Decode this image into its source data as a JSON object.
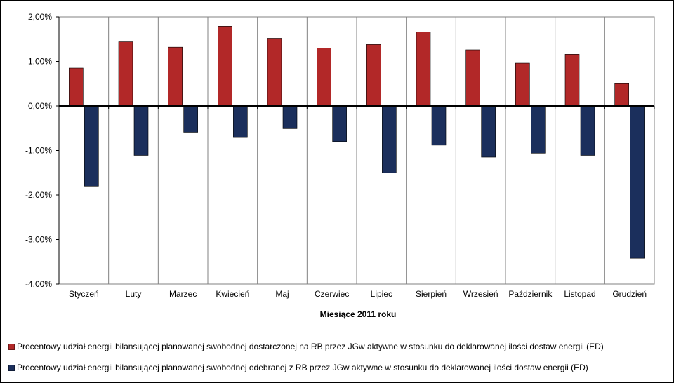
{
  "chart_data": {
    "type": "bar",
    "xlabel": "Miesiące 2011  roku",
    "ylabel": "",
    "ylim": [
      -4,
      2
    ],
    "y_ticks": [
      "2,00%",
      "1,00%",
      "0,00%",
      "-1,00%",
      "-2,00%",
      "-3,00%",
      "-4,00%"
    ],
    "categories": [
      "Styczeń",
      "Luty",
      "Marzec",
      "Kwiecień",
      "Maj",
      "Czerwiec",
      "Lipiec",
      "Sierpień",
      "Wrzesień",
      "Październik",
      "Listopad",
      "Grudzień"
    ],
    "series": [
      {
        "name": "Procentowy udział energii bilansującej planowanej swobodnej dostarczonej na RB przez JGw aktywne w stosunku do deklarowanej ilości dostaw energii (ED)",
        "color": "#b22828",
        "values": [
          0.85,
          1.44,
          1.32,
          1.79,
          1.52,
          1.3,
          1.38,
          1.66,
          1.26,
          0.96,
          1.16,
          0.5
        ]
      },
      {
        "name": "Procentowy udział energii bilansującej planowanej swobodnej odebranej z RB przez JGw aktywne w stosunku do deklarowanej ilości dostaw energii (ED)",
        "color": "#1b2f5c",
        "values": [
          -1.8,
          -1.11,
          -0.59,
          -0.71,
          -0.51,
          -0.8,
          -1.5,
          -0.88,
          -1.15,
          -1.06,
          -1.11,
          -3.42
        ]
      }
    ],
    "grid": "vertical",
    "legend_position": "bottom"
  }
}
